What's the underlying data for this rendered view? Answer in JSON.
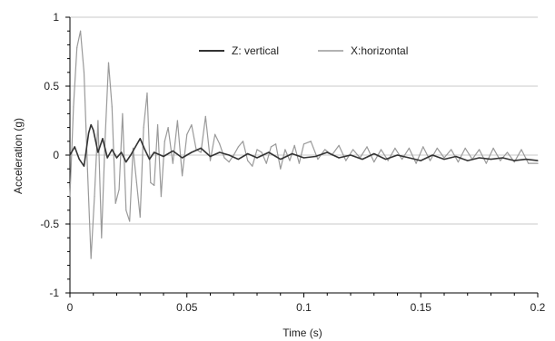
{
  "chart_data": {
    "type": "line",
    "title": "",
    "xlabel": "Time (s)",
    "ylabel": "Acceleration (g)",
    "xlim": [
      0,
      0.2
    ],
    "ylim": [
      -1,
      1
    ],
    "x_ticks": [
      0,
      0.05,
      0.1,
      0.15,
      0.2
    ],
    "x_tick_labels": [
      "0",
      "0.05",
      "0.1",
      "0.15",
      "0.2"
    ],
    "y_ticks": [
      1,
      0.5,
      0,
      -0.5,
      -1
    ],
    "y_tick_labels": [
      "1",
      "0.5",
      "0",
      "-0.5",
      "-1"
    ],
    "grid": "horizontal",
    "legend_position": "top-center",
    "series": [
      {
        "name": "Z: vertical",
        "color": "#333333",
        "x": [
          0,
          0.002,
          0.004,
          0.006,
          0.008,
          0.009,
          0.01,
          0.012,
          0.014,
          0.016,
          0.018,
          0.02,
          0.022,
          0.024,
          0.026,
          0.028,
          0.03,
          0.032,
          0.034,
          0.036,
          0.04,
          0.044,
          0.048,
          0.052,
          0.056,
          0.06,
          0.064,
          0.068,
          0.072,
          0.076,
          0.08,
          0.085,
          0.09,
          0.095,
          0.1,
          0.105,
          0.11,
          0.115,
          0.12,
          0.125,
          0.13,
          0.135,
          0.14,
          0.145,
          0.15,
          0.155,
          0.16,
          0.165,
          0.17,
          0.175,
          0.18,
          0.185,
          0.19,
          0.195,
          0.2
        ],
        "y": [
          0,
          0.06,
          -0.03,
          -0.08,
          0.16,
          0.22,
          0.18,
          0.02,
          0.12,
          -0.02,
          0.04,
          -0.02,
          0.02,
          -0.05,
          0.0,
          0.06,
          0.12,
          0.04,
          -0.03,
          0.02,
          -0.01,
          0.03,
          -0.02,
          0.02,
          0.05,
          -0.01,
          0.02,
          0.0,
          -0.03,
          0.01,
          -0.02,
          0.02,
          -0.03,
          0.01,
          -0.02,
          -0.01,
          0.02,
          -0.02,
          0.0,
          -0.03,
          0.01,
          -0.03,
          0.0,
          -0.02,
          -0.04,
          0.0,
          -0.03,
          -0.01,
          -0.04,
          -0.02,
          -0.03,
          -0.02,
          -0.04,
          -0.03,
          -0.04
        ]
      },
      {
        "name": "X:horizontal",
        "color": "#9a9a9a",
        "x": [
          0,
          0.0015,
          0.003,
          0.0045,
          0.006,
          0.0075,
          0.009,
          0.0105,
          0.012,
          0.0135,
          0.015,
          0.0165,
          0.018,
          0.0195,
          0.021,
          0.0225,
          0.024,
          0.0255,
          0.027,
          0.0285,
          0.03,
          0.0315,
          0.033,
          0.0345,
          0.036,
          0.0375,
          0.039,
          0.0405,
          0.042,
          0.044,
          0.046,
          0.048,
          0.05,
          0.052,
          0.054,
          0.056,
          0.058,
          0.06,
          0.062,
          0.064,
          0.066,
          0.068,
          0.07,
          0.072,
          0.074,
          0.076,
          0.078,
          0.08,
          0.082,
          0.084,
          0.086,
          0.088,
          0.09,
          0.092,
          0.094,
          0.096,
          0.098,
          0.1,
          0.103,
          0.106,
          0.109,
          0.112,
          0.115,
          0.118,
          0.121,
          0.124,
          0.127,
          0.13,
          0.133,
          0.136,
          0.139,
          0.142,
          0.145,
          0.148,
          0.151,
          0.154,
          0.157,
          0.16,
          0.163,
          0.166,
          0.169,
          0.172,
          0.175,
          0.178,
          0.181,
          0.184,
          0.187,
          0.19,
          0.193,
          0.196,
          0.2
        ],
        "y": [
          -0.3,
          0.35,
          0.78,
          0.9,
          0.6,
          -0.1,
          -0.75,
          -0.3,
          0.25,
          -0.6,
          0.1,
          0.67,
          0.35,
          -0.35,
          -0.25,
          0.3,
          -0.4,
          -0.48,
          0.05,
          -0.2,
          -0.45,
          0.2,
          0.45,
          -0.2,
          -0.22,
          0.22,
          -0.3,
          0.1,
          0.2,
          -0.06,
          0.25,
          -0.15,
          0.15,
          0.22,
          0.04,
          0.02,
          0.28,
          -0.04,
          0.15,
          0.08,
          -0.02,
          -0.05,
          0.0,
          0.06,
          0.1,
          -0.04,
          -0.08,
          0.04,
          0.02,
          -0.06,
          0.06,
          0.08,
          -0.1,
          0.04,
          -0.04,
          0.07,
          -0.06,
          0.08,
          0.1,
          -0.03,
          0.04,
          0.0,
          0.07,
          -0.04,
          0.04,
          -0.02,
          0.06,
          -0.05,
          0.04,
          -0.04,
          0.05,
          -0.03,
          0.05,
          -0.06,
          0.06,
          -0.04,
          0.05,
          -0.02,
          0.04,
          -0.05,
          0.05,
          -0.03,
          0.04,
          -0.06,
          0.05,
          -0.04,
          0.02,
          -0.05,
          0.04,
          -0.06,
          -0.06
        ]
      }
    ]
  }
}
